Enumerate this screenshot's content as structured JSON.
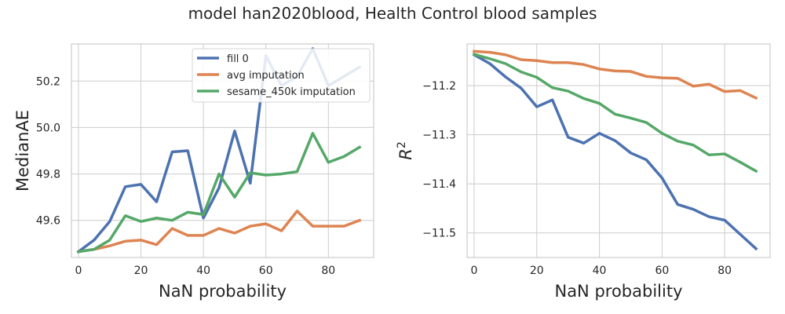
{
  "figure": {
    "title": "model han2020blood, Health Control blood samples"
  },
  "colors": {
    "fill 0": "#4c72b0",
    "avg imputation": "#dd8452",
    "sesame_450k imputation": "#55a868",
    "grid": "#cccccc",
    "spine": "#cccccc"
  },
  "chart_data": [
    {
      "type": "line",
      "title": "",
      "xlabel": "NaN probability",
      "ylabel": "MedianAE",
      "ylabel_math": false,
      "xlim": [
        -2.25,
        94.5
      ],
      "ylim": [
        49.44,
        50.36
      ],
      "xticks": [
        0,
        20,
        40,
        60,
        80
      ],
      "yticks": [
        49.6,
        49.8,
        50.0,
        50.2
      ],
      "ytick_labels": [
        "49.6",
        "49.8",
        "50.0",
        "50.2"
      ],
      "grid": true,
      "legend": "top-center",
      "x": [
        0,
        5,
        10,
        15,
        20,
        25,
        30,
        35,
        40,
        45,
        50,
        55,
        60,
        65,
        70,
        75,
        80,
        85,
        90
      ],
      "series": [
        {
          "name": "fill 0",
          "values": [
            49.465,
            49.515,
            49.595,
            49.745,
            49.755,
            49.68,
            49.895,
            49.9,
            49.61,
            49.74,
            49.985,
            49.76,
            50.31,
            50.18,
            50.22,
            50.34,
            50.18,
            50.22,
            50.26
          ]
        },
        {
          "name": "avg imputation",
          "values": [
            49.465,
            49.475,
            49.49,
            49.51,
            49.515,
            49.495,
            49.565,
            49.535,
            49.535,
            49.565,
            49.545,
            49.575,
            49.585,
            49.555,
            49.64,
            49.575,
            49.575,
            49.575,
            49.6
          ]
        },
        {
          "name": "sesame_450k imputation",
          "values": [
            49.465,
            49.475,
            49.515,
            49.62,
            49.595,
            49.61,
            49.6,
            49.635,
            49.625,
            49.8,
            49.7,
            49.805,
            49.795,
            49.8,
            49.81,
            49.975,
            49.85,
            49.875,
            49.915
          ]
        }
      ]
    },
    {
      "type": "line",
      "title": "",
      "xlabel": "NaN probability",
      "ylabel": "R2",
      "ylabel_math": true,
      "xlim": [
        -2.25,
        94.5
      ],
      "ylim": [
        -11.55,
        -11.115
      ],
      "xticks": [
        0,
        20,
        40,
        60,
        80
      ],
      "yticks": [
        -11.5,
        -11.4,
        -11.3,
        -11.2
      ],
      "ytick_labels": [
        "−11.5",
        "−11.4",
        "−11.3",
        "−11.2"
      ],
      "grid": true,
      "legend": "",
      "x": [
        0,
        5,
        10,
        15,
        20,
        25,
        30,
        35,
        40,
        45,
        50,
        55,
        60,
        65,
        70,
        75,
        80,
        85,
        90
      ],
      "series": [
        {
          "name": "fill 0",
          "values": [
            -11.137,
            -11.155,
            -11.182,
            -11.205,
            -11.243,
            -11.229,
            -11.305,
            -11.317,
            -11.297,
            -11.312,
            -11.337,
            -11.351,
            -11.388,
            -11.442,
            -11.452,
            -11.467,
            -11.474,
            -11.503,
            -11.532
          ]
        },
        {
          "name": "avg imputation",
          "values": [
            -11.13,
            -11.132,
            -11.137,
            -11.147,
            -11.149,
            -11.153,
            -11.153,
            -11.157,
            -11.166,
            -11.17,
            -11.171,
            -11.181,
            -11.184,
            -11.185,
            -11.201,
            -11.197,
            -11.212,
            -11.21,
            -11.225
          ]
        },
        {
          "name": "sesame_450k imputation",
          "values": [
            -11.136,
            -11.145,
            -11.155,
            -11.172,
            -11.183,
            -11.204,
            -11.211,
            -11.226,
            -11.236,
            -11.258,
            -11.266,
            -11.275,
            -11.297,
            -11.313,
            -11.321,
            -11.341,
            -11.339,
            -11.356,
            -11.374
          ]
        }
      ]
    }
  ]
}
